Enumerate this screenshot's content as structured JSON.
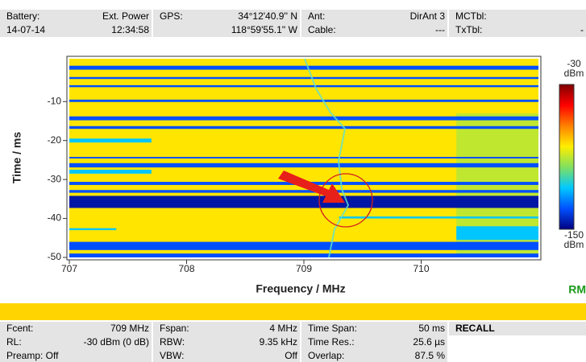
{
  "header": {
    "rows": [
      [
        {
          "label": "Battery:",
          "value": "Ext. Power"
        },
        {
          "label": "GPS:",
          "value": "34°12'40.9'' N"
        },
        {
          "label": "Ant:",
          "value": "DirAnt 3"
        },
        {
          "label": "MCTbl:"
        }
      ],
      [
        {
          "label": "14-07-14",
          "value": "12:34:58"
        },
        {
          "value": "118°59'55.1'' W"
        },
        {
          "label": "Cable:",
          "value": "---"
        },
        {
          "label": "TxTbl:",
          "value": "-"
        }
      ]
    ]
  },
  "chart_data": {
    "type": "heatmap",
    "xlabel": "Frequency / MHz",
    "ylabel": "Time / ms",
    "xlim": [
      707,
      711
    ],
    "ylim": [
      -50,
      1
    ],
    "xticks": [
      707,
      708,
      709,
      710
    ],
    "yticks": [
      -10,
      -20,
      -30,
      -40,
      -50
    ],
    "colorbar": {
      "lim": [
        -150,
        -30
      ],
      "ticks": [
        -30,
        -150
      ],
      "unit": "dBm",
      "colors": [
        "#800000",
        "#ff0000",
        "#ff8000",
        "#ffee00",
        "#80e060",
        "#00c8ff",
        "#0050ff",
        "#000080"
      ]
    },
    "mode": "RM",
    "cells": [
      {
        "f": [
          707,
          711
        ],
        "t": [
          1,
          -50
        ],
        "v": -80
      },
      {
        "f": [
          710.3,
          711
        ],
        "t": [
          -13,
          -50
        ],
        "v": -90
      },
      {
        "f": [
          707,
          711
        ],
        "t": [
          -0.8,
          -1.8
        ],
        "v": -133
      },
      {
        "f": [
          707,
          711
        ],
        "t": [
          -3.7,
          -4.2
        ],
        "v": -133
      },
      {
        "f": [
          707,
          711
        ],
        "t": [
          -5.8,
          -6.3
        ],
        "v": -133
      },
      {
        "f": [
          707,
          711
        ],
        "t": [
          -9.5,
          -10.1
        ],
        "v": -133
      },
      {
        "f": [
          707,
          711
        ],
        "t": [
          -13.8,
          -14.8
        ],
        "v": -133
      },
      {
        "f": [
          707,
          711
        ],
        "t": [
          -16.3,
          -17
        ],
        "v": -133
      },
      {
        "f": [
          707,
          711
        ],
        "t": [
          -24.2,
          -24.6
        ],
        "v": -133
      },
      {
        "f": [
          707,
          711
        ],
        "t": [
          -25.8,
          -26.9
        ],
        "v": -133
      },
      {
        "f": [
          707,
          711
        ],
        "t": [
          -30.6,
          -31.4
        ],
        "v": -133
      },
      {
        "f": [
          707,
          711
        ],
        "t": [
          -32.7,
          -33.4
        ],
        "v": -133
      },
      {
        "f": [
          707,
          711
        ],
        "t": [
          -34.2,
          -37.3
        ],
        "v": -145
      },
      {
        "f": [
          707,
          711
        ],
        "t": [
          -46,
          -48.1
        ],
        "v": -133
      },
      {
        "f": [
          707,
          711
        ],
        "t": [
          -49,
          -50
        ],
        "v": -133
      },
      {
        "f": [
          707,
          707.7
        ],
        "t": [
          -19.5,
          -20.5
        ],
        "v": -116
      },
      {
        "f": [
          707,
          707.7
        ],
        "t": [
          -27.5,
          -28.5
        ],
        "v": -116
      },
      {
        "f": [
          707,
          707.4
        ],
        "t": [
          -42.5,
          -43
        ],
        "v": -116
      },
      {
        "f": [
          710.3,
          711
        ],
        "t": [
          -42,
          -45.5
        ],
        "v": -116
      },
      {
        "f": [
          709.3,
          711
        ],
        "t": [
          -39.5,
          -40
        ],
        "v": -116
      }
    ]
  },
  "footer": {
    "rows": [
      [
        {
          "label": "Fcent:",
          "value": "709 MHz"
        },
        {
          "label": "Fspan:",
          "value": "4 MHz"
        },
        {
          "label": "Time Span:",
          "value": "50 ms"
        },
        {
          "label": "RECALL"
        }
      ],
      [
        {
          "label": "RL:",
          "value": "-30 dBm (0 dB)"
        },
        {
          "label": "RBW:",
          "value": "9.35 kHz"
        },
        {
          "label": "Time Res.:",
          "value": "25.6 µs"
        }
      ],
      [
        {
          "label": "Preamp: Off"
        },
        {
          "label": "VBW:",
          "value": "Off"
        },
        {
          "label": "Overlap:",
          "value": "87.5 %"
        }
      ]
    ]
  }
}
